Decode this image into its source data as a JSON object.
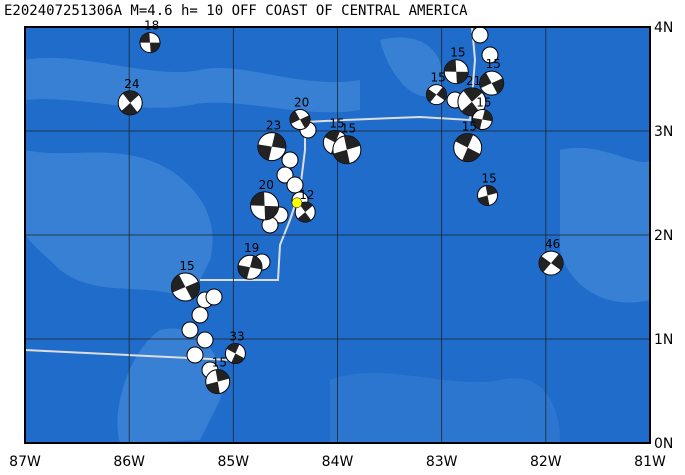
{
  "title": "E202407251306A M=4.6 h= 10 OFF COAST OF CENTRAL AMERICA",
  "map": {
    "lon_range": [
      -87,
      -81
    ],
    "lat_range": [
      0,
      4
    ],
    "lon_ticks": [
      {
        "value": -87,
        "label": "87W"
      },
      {
        "value": -86,
        "label": "86W"
      },
      {
        "value": -85,
        "label": "85W"
      },
      {
        "value": -84,
        "label": "84W"
      },
      {
        "value": -83,
        "label": "83W"
      },
      {
        "value": -82,
        "label": "82W"
      },
      {
        "value": -81,
        "label": "81W"
      }
    ],
    "lat_ticks": [
      {
        "value": 0,
        "label": "0N"
      },
      {
        "value": 1,
        "label": "1N"
      },
      {
        "value": 2,
        "label": "2N"
      },
      {
        "value": 3,
        "label": "3N"
      },
      {
        "value": 4,
        "label": "4N"
      }
    ],
    "main_event": {
      "lon": -84.39,
      "lat": 2.31,
      "color": "#ffff00"
    },
    "events": [
      {
        "label": "18",
        "lon": -85.8,
        "lat": 3.85
      },
      {
        "label": "24",
        "lon": -85.99,
        "lat": 3.27
      },
      {
        "label": "23",
        "lon": -84.63,
        "lat": 2.85
      },
      {
        "label": "20",
        "lon": -84.36,
        "lat": 3.11
      },
      {
        "label": "15",
        "lon": -84.02,
        "lat": 2.89
      },
      {
        "label": "15",
        "lon": -83.91,
        "lat": 2.82
      },
      {
        "label": "15",
        "lon": -83.05,
        "lat": 3.35
      },
      {
        "label": "15",
        "lon": -82.86,
        "lat": 3.57
      },
      {
        "label": "21",
        "lon": -82.71,
        "lat": 3.28
      },
      {
        "label": "15",
        "lon": -82.61,
        "lat": 3.11
      },
      {
        "label": "15",
        "lon": -82.52,
        "lat": 3.46
      },
      {
        "label": "15",
        "lon": -82.75,
        "lat": 2.84
      },
      {
        "label": "15",
        "lon": -82.56,
        "lat": 2.38
      },
      {
        "label": "46",
        "lon": -81.95,
        "lat": 1.73
      },
      {
        "label": "20",
        "lon": -84.7,
        "lat": 2.28
      },
      {
        "label": "12",
        "lon": -84.31,
        "lat": 2.22
      },
      {
        "label": "19",
        "lon": -84.84,
        "lat": 1.69
      },
      {
        "label": "15",
        "lon": -85.46,
        "lat": 1.5
      },
      {
        "label": "33",
        "lon": -84.98,
        "lat": 0.86
      },
      {
        "label": "15",
        "lon": -85.15,
        "lat": 0.59
      }
    ]
  }
}
